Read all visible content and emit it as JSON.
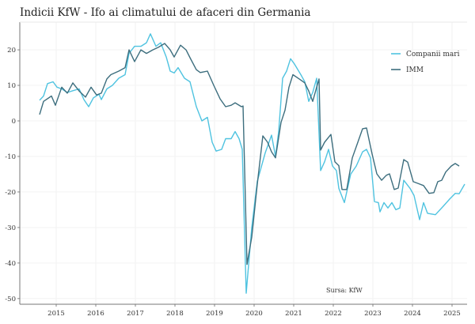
{
  "chart_data": {
    "type": "line",
    "title": "Indicii KfW - Ifo ai climatului de afaceri din Germania",
    "source": "Sursa: KfW",
    "xlabel": "",
    "ylabel": "",
    "xlim": [
      2014.08,
      2025.38
    ],
    "ylim": [
      -51.6,
      27.8
    ],
    "x_ticks": [
      2015,
      2016,
      2017,
      2018,
      2019,
      2020,
      2021,
      2022,
      2023,
      2024,
      2025
    ],
    "x_tick_labels": [
      "2015",
      "2016",
      "2017",
      "2018",
      "2019",
      "2020",
      "2021",
      "2022",
      "2023",
      "2024",
      "2025"
    ],
    "y_ticks": [
      20,
      10,
      0,
      -10,
      -20,
      -30,
      -40,
      -50
    ],
    "y_tick_labels": [
      "20",
      "10",
      "0",
      "-10",
      "-20",
      "-30",
      "-40",
      "-50"
    ],
    "grid": true,
    "legend_position": "top-right",
    "series": [
      {
        "name": "Companii mari",
        "color": "#4fc3e0",
        "points": [
          [
            2014.58,
            5.8
          ],
          [
            2014.68,
            7
          ],
          [
            2014.78,
            10.5
          ],
          [
            2014.92,
            11
          ],
          [
            2015.02,
            9.5
          ],
          [
            2015.14,
            9
          ],
          [
            2015.28,
            8
          ],
          [
            2015.42,
            8.5
          ],
          [
            2015.58,
            9
          ],
          [
            2015.7,
            6
          ],
          [
            2015.82,
            4
          ],
          [
            2015.94,
            6.5
          ],
          [
            2016.08,
            7.5
          ],
          [
            2016.14,
            6
          ],
          [
            2016.28,
            9
          ],
          [
            2016.42,
            10
          ],
          [
            2016.58,
            12
          ],
          [
            2016.74,
            13
          ],
          [
            2016.84,
            19
          ],
          [
            2016.98,
            21
          ],
          [
            2017.14,
            21
          ],
          [
            2017.28,
            22
          ],
          [
            2017.38,
            24.5
          ],
          [
            2017.52,
            21
          ],
          [
            2017.64,
            22
          ],
          [
            2017.78,
            18
          ],
          [
            2017.88,
            14
          ],
          [
            2017.98,
            13.5
          ],
          [
            2018.08,
            15
          ],
          [
            2018.24,
            12
          ],
          [
            2018.38,
            11
          ],
          [
            2018.54,
            4
          ],
          [
            2018.68,
            0
          ],
          [
            2018.82,
            1
          ],
          [
            2018.94,
            -6
          ],
          [
            2019.04,
            -8.5
          ],
          [
            2019.18,
            -8
          ],
          [
            2019.28,
            -5
          ],
          [
            2019.42,
            -5
          ],
          [
            2019.52,
            -3
          ],
          [
            2019.62,
            -5
          ],
          [
            2019.7,
            -8
          ],
          [
            2019.8,
            -48.5
          ],
          [
            2019.94,
            -30
          ],
          [
            2020.08,
            -17
          ],
          [
            2020.18,
            -13
          ],
          [
            2020.28,
            -9
          ],
          [
            2020.44,
            -4
          ],
          [
            2020.54,
            -10
          ],
          [
            2020.62,
            -3
          ],
          [
            2020.72,
            12
          ],
          [
            2020.82,
            14
          ],
          [
            2020.92,
            17.5
          ],
          [
            2021.02,
            16
          ],
          [
            2021.18,
            13
          ],
          [
            2021.28,
            11
          ],
          [
            2021.38,
            5.5
          ],
          [
            2021.48,
            8
          ],
          [
            2021.58,
            12
          ],
          [
            2021.68,
            -14
          ],
          [
            2021.78,
            -11.5
          ],
          [
            2021.88,
            -8
          ],
          [
            2021.98,
            -12.7
          ],
          [
            2022.08,
            -14
          ],
          [
            2022.14,
            -19
          ],
          [
            2022.28,
            -23
          ],
          [
            2022.44,
            -15
          ],
          [
            2022.58,
            -12.7
          ],
          [
            2022.74,
            -8.7
          ],
          [
            2022.84,
            -8
          ],
          [
            2022.94,
            -10.4
          ],
          [
            2023.04,
            -22.7
          ],
          [
            2023.14,
            -23
          ],
          [
            2023.18,
            -25.6
          ],
          [
            2023.28,
            -23
          ],
          [
            2023.38,
            -24.5
          ],
          [
            2023.48,
            -23
          ],
          [
            2023.58,
            -25
          ],
          [
            2023.68,
            -24.5
          ],
          [
            2023.78,
            -16.7
          ],
          [
            2023.94,
            -19
          ],
          [
            2024.04,
            -21
          ],
          [
            2024.18,
            -27.8
          ],
          [
            2024.28,
            -23
          ],
          [
            2024.38,
            -26
          ],
          [
            2024.58,
            -26.4
          ],
          [
            2024.78,
            -24
          ],
          [
            2024.94,
            -22
          ],
          [
            2025.08,
            -20.4
          ],
          [
            2025.18,
            -20.5
          ],
          [
            2025.32,
            -17.8
          ]
        ]
      },
      {
        "name": "IMM",
        "color": "#3d6e7e",
        "points": [
          [
            2014.58,
            1.8
          ],
          [
            2014.68,
            5.5
          ],
          [
            2014.88,
            7
          ],
          [
            2014.98,
            4.4
          ],
          [
            2015.14,
            9.5
          ],
          [
            2015.28,
            7.8
          ],
          [
            2015.42,
            10.7
          ],
          [
            2015.58,
            8.4
          ],
          [
            2015.74,
            6.7
          ],
          [
            2015.88,
            9.5
          ],
          [
            2016.02,
            7.3
          ],
          [
            2016.14,
            7.8
          ],
          [
            2016.28,
            11.8
          ],
          [
            2016.38,
            13
          ],
          [
            2016.58,
            14
          ],
          [
            2016.74,
            15
          ],
          [
            2016.84,
            20
          ],
          [
            2016.98,
            16.7
          ],
          [
            2017.14,
            20
          ],
          [
            2017.28,
            19
          ],
          [
            2017.44,
            20
          ],
          [
            2017.58,
            20.7
          ],
          [
            2017.74,
            21.8
          ],
          [
            2017.88,
            20
          ],
          [
            2017.98,
            18
          ],
          [
            2018.14,
            21.3
          ],
          [
            2018.28,
            20
          ],
          [
            2018.38,
            17.8
          ],
          [
            2018.54,
            14.4
          ],
          [
            2018.64,
            13.6
          ],
          [
            2018.82,
            14
          ],
          [
            2018.98,
            10
          ],
          [
            2019.14,
            6.2
          ],
          [
            2019.28,
            4
          ],
          [
            2019.42,
            4.4
          ],
          [
            2019.52,
            5.1
          ],
          [
            2019.68,
            4
          ],
          [
            2019.72,
            4.2
          ],
          [
            2019.82,
            -40.4
          ],
          [
            2019.94,
            -32.7
          ],
          [
            2020.08,
            -17.8
          ],
          [
            2020.22,
            -4.2
          ],
          [
            2020.34,
            -6
          ],
          [
            2020.44,
            -8.7
          ],
          [
            2020.54,
            -10.4
          ],
          [
            2020.68,
            -0.4
          ],
          [
            2020.78,
            3
          ],
          [
            2020.88,
            9.5
          ],
          [
            2020.98,
            13
          ],
          [
            2021.14,
            11.8
          ],
          [
            2021.28,
            10.7
          ],
          [
            2021.38,
            8.4
          ],
          [
            2021.48,
            5.5
          ],
          [
            2021.58,
            9.5
          ],
          [
            2021.64,
            11.8
          ],
          [
            2021.68,
            -8.2
          ],
          [
            2021.78,
            -6
          ],
          [
            2021.94,
            -3.8
          ],
          [
            2022.04,
            -11.5
          ],
          [
            2022.14,
            -12.6
          ],
          [
            2022.22,
            -19.3
          ],
          [
            2022.34,
            -19.3
          ],
          [
            2022.48,
            -10.4
          ],
          [
            2022.62,
            -6
          ],
          [
            2022.74,
            -2.2
          ],
          [
            2022.84,
            -2
          ],
          [
            2022.98,
            -9.3
          ],
          [
            2023.1,
            -14.9
          ],
          [
            2023.22,
            -16.7
          ],
          [
            2023.34,
            -15.3
          ],
          [
            2023.42,
            -14.9
          ],
          [
            2023.54,
            -19.3
          ],
          [
            2023.64,
            -18.9
          ],
          [
            2023.78,
            -10.9
          ],
          [
            2023.88,
            -11.6
          ],
          [
            2024.02,
            -17.1
          ],
          [
            2024.14,
            -17.6
          ],
          [
            2024.28,
            -18.2
          ],
          [
            2024.42,
            -20.4
          ],
          [
            2024.54,
            -20.2
          ],
          [
            2024.64,
            -17.1
          ],
          [
            2024.74,
            -16.7
          ],
          [
            2024.84,
            -14.4
          ],
          [
            2024.98,
            -12.7
          ],
          [
            2025.08,
            -12
          ],
          [
            2025.18,
            -12.7
          ]
        ]
      }
    ]
  }
}
